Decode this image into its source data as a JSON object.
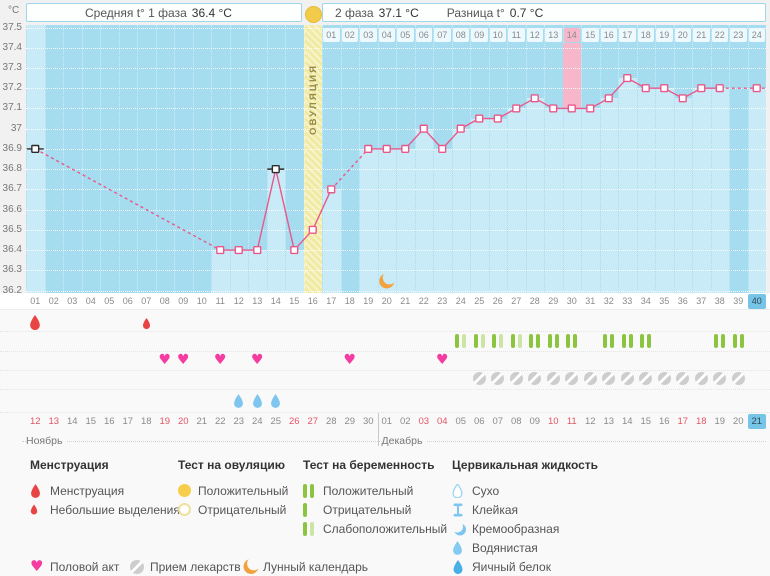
{
  "header": {
    "unit": "°C",
    "phase1_label": "Средняя t° 1 фаза",
    "phase1_value": "36.4 °C",
    "phase2_label": "2 фаза",
    "phase2_value": "37.1 °C",
    "diff_label": "Разница t°",
    "diff_value": "0.7 °C"
  },
  "chart_data": {
    "type": "line",
    "title": "Basal body temperature cycle chart",
    "unit": "°C",
    "ylim": [
      36.2,
      37.5
    ],
    "y_ticks": [
      "37.5",
      "37.4",
      "37.3",
      "37.2",
      "37.1",
      "37",
      "36.9",
      "36.8",
      "36.7",
      "36.6",
      "36.5",
      "36.4",
      "36.3",
      "36.2"
    ],
    "x_days": [
      "01",
      "02",
      "03",
      "04",
      "05",
      "06",
      "07",
      "08",
      "09",
      "10",
      "11",
      "12",
      "13",
      "14",
      "15",
      "16",
      "17",
      "18",
      "19",
      "20",
      "21",
      "22",
      "23",
      "24",
      "25",
      "26",
      "27",
      "28",
      "29",
      "30",
      "31",
      "32",
      "33",
      "34",
      "35",
      "36",
      "37",
      "38",
      "39",
      "40"
    ],
    "temperatures": [
      36.9,
      null,
      null,
      null,
      null,
      null,
      null,
      null,
      null,
      null,
      36.4,
      36.4,
      36.4,
      36.8,
      36.4,
      36.5,
      36.7,
      null,
      36.9,
      36.9,
      36.9,
      37.0,
      36.9,
      37.0,
      37.05,
      37.05,
      37.1,
      37.15,
      37.1,
      37.1,
      37.1,
      37.15,
      37.25,
      37.2,
      37.2,
      37.15,
      37.2,
      37.2,
      null,
      37.2
    ],
    "excluded_days": [
      1,
      14
    ],
    "ovulation_day": 16,
    "ovulation_label": "ОВУЛЯЦИЯ",
    "phase2_day_labels": [
      "01",
      "02",
      "03",
      "04",
      "05",
      "06",
      "07",
      "08",
      "09",
      "10",
      "11",
      "12",
      "13",
      "14",
      "15",
      "16",
      "17",
      "18",
      "19",
      "20",
      "21",
      "22",
      "23",
      "24"
    ],
    "phase2_highlight_label": "14",
    "phase2_highlight_cycle_day": 30,
    "current_day": 40
  },
  "events": {
    "menstruation": [
      {
        "day": 1,
        "size": "large"
      },
      {
        "day": 7,
        "size": "small"
      }
    ],
    "ovulation_test_positive_day": 16,
    "pregnancy_tests": [
      {
        "day": 24,
        "result": "weak"
      },
      {
        "day": 25,
        "result": "weak"
      },
      {
        "day": 26,
        "result": "weak"
      },
      {
        "day": 27,
        "result": "weak"
      },
      {
        "day": 28,
        "result": "positive"
      },
      {
        "day": 29,
        "result": "positive"
      },
      {
        "day": 30,
        "result": "positive"
      },
      {
        "day": 32,
        "result": "positive"
      },
      {
        "day": 33,
        "result": "positive"
      },
      {
        "day": 34,
        "result": "positive"
      },
      {
        "day": 38,
        "result": "positive"
      },
      {
        "day": 39,
        "result": "positive"
      }
    ],
    "intercourse_days": [
      8,
      9,
      11,
      13,
      18,
      23
    ],
    "medication_days": [
      25,
      26,
      27,
      28,
      29,
      30,
      31,
      32,
      33,
      34,
      35,
      36,
      37,
      38,
      39
    ],
    "cervical_fluid": [
      {
        "day": 12,
        "type": "watery"
      },
      {
        "day": 13,
        "type": "watery"
      },
      {
        "day": 14,
        "type": "watery"
      }
    ],
    "moon_day": 20
  },
  "calendar": {
    "months": [
      {
        "name": "Ноябрь",
        "start_day": 1
      },
      {
        "name": "Декабрь",
        "start_day": 20
      }
    ],
    "dates": [
      {
        "label": "12",
        "red": true
      },
      {
        "label": "13",
        "red": true
      },
      {
        "label": "14"
      },
      {
        "label": "15"
      },
      {
        "label": "16"
      },
      {
        "label": "17"
      },
      {
        "label": "18"
      },
      {
        "label": "19",
        "red": true
      },
      {
        "label": "20",
        "red": true
      },
      {
        "label": "21"
      },
      {
        "label": "22"
      },
      {
        "label": "23"
      },
      {
        "label": "24"
      },
      {
        "label": "25"
      },
      {
        "label": "26",
        "red": true
      },
      {
        "label": "27",
        "red": true
      },
      {
        "label": "28"
      },
      {
        "label": "29"
      },
      {
        "label": "30"
      },
      {
        "label": "01"
      },
      {
        "label": "02"
      },
      {
        "label": "03",
        "red": true
      },
      {
        "label": "04",
        "red": true
      },
      {
        "label": "05"
      },
      {
        "label": "06"
      },
      {
        "label": "07"
      },
      {
        "label": "08"
      },
      {
        "label": "09"
      },
      {
        "label": "10",
        "red": true
      },
      {
        "label": "11",
        "red": true
      },
      {
        "label": "12"
      },
      {
        "label": "13"
      },
      {
        "label": "14"
      },
      {
        "label": "15"
      },
      {
        "label": "16"
      },
      {
        "label": "17",
        "red": true
      },
      {
        "label": "18",
        "red": true
      },
      {
        "label": "19"
      },
      {
        "label": "20"
      },
      {
        "label": "21",
        "today": true
      }
    ]
  },
  "legend": {
    "sections": [
      {
        "title": "Менструация",
        "items": [
          {
            "icon": "drop-large",
            "label": "Менструация"
          },
          {
            "icon": "drop-small",
            "label": "Небольшие выделения"
          }
        ]
      },
      {
        "title": "Тест на овуляцию",
        "items": [
          {
            "icon": "circle-filled",
            "label": "Положительный"
          },
          {
            "icon": "circle-outline",
            "label": "Отрицательный"
          }
        ]
      },
      {
        "title": "Тест на беременность",
        "items": [
          {
            "icon": "bars-positive",
            "label": "Положительный"
          },
          {
            "icon": "bar-negative",
            "label": "Отрицательный"
          },
          {
            "icon": "bars-weak",
            "label": "Слабоположительный"
          }
        ]
      },
      {
        "title": "Цервикальная жидкость",
        "items": [
          {
            "icon": "drop-outline",
            "label": "Сухо"
          },
          {
            "icon": "sticky",
            "label": "Клейкая"
          },
          {
            "icon": "creamy",
            "label": "Кремообразная"
          },
          {
            "icon": "watery-drop",
            "label": "Водянистая"
          },
          {
            "icon": "eggwhite-drop",
            "label": "Яичный белок"
          }
        ]
      }
    ],
    "bottom": [
      {
        "icon": "heart",
        "label": "Половой акт"
      },
      {
        "icon": "pill",
        "label": "Прием лекарств"
      },
      {
        "icon": "moon",
        "label": "Лунный календарь"
      }
    ]
  },
  "colors": {
    "column_dark": "#A5DCEF",
    "column_light": "#C9EAF7",
    "ovulation_band": "#F1EAA2",
    "highlight_pink": "#F8B6CA",
    "line_pink": "#E9588A",
    "excluded_black": "#2B2B2B",
    "menses_red": "#E84444",
    "heart_pink": "#F53DA1",
    "test_green": "#8BC53F",
    "test_green_pale": "#CDE5A4",
    "pill_gray": "#CDCDCD",
    "fluid_blue": "#7EC6F0",
    "eggwhite_blue": "#4BAFE7",
    "moon_orange": "#F2A23C",
    "date_red": "#E25563",
    "today_blue": "#76C4E6"
  }
}
